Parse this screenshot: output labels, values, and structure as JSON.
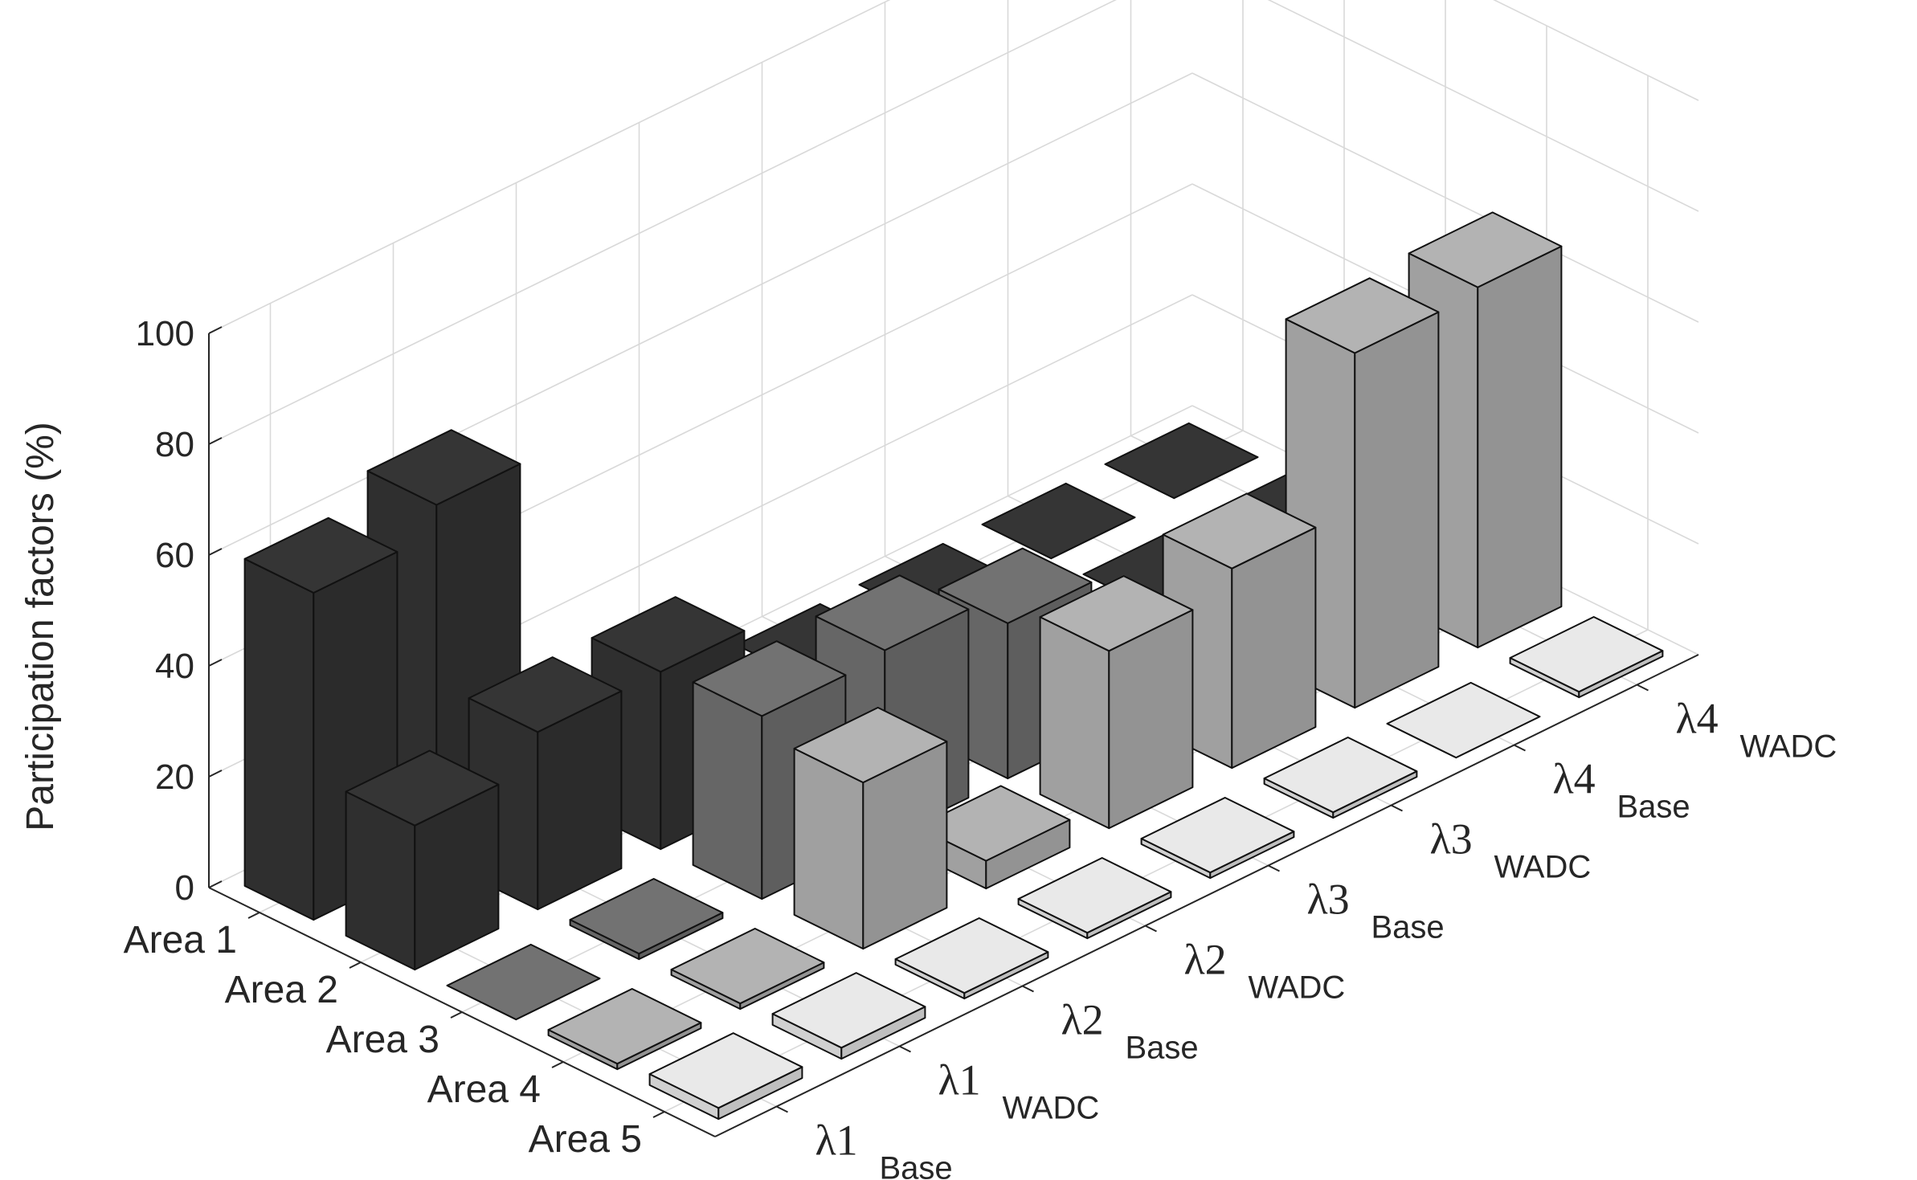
{
  "chart_data": {
    "type": "bar3d",
    "title": "",
    "zlabel": "Participation factors (%)",
    "zlim": [
      0,
      100
    ],
    "z_ticks": [
      "0",
      "20",
      "40",
      "60",
      "80",
      "100"
    ],
    "areas": [
      "Area 1",
      "Area 2",
      "Area 3",
      "Area 4",
      "Area 5"
    ],
    "modes": [
      {
        "symbol": "λ1",
        "sub": "Base"
      },
      {
        "symbol": "λ1",
        "sub": "WADC"
      },
      {
        "symbol": "λ2",
        "sub": "Base"
      },
      {
        "symbol": "λ2",
        "sub": "WADC"
      },
      {
        "symbol": "λ3",
        "sub": "Base"
      },
      {
        "symbol": "λ3",
        "sub": "WADC"
      },
      {
        "symbol": "λ4",
        "sub": "Base"
      },
      {
        "symbol": "λ4",
        "sub": "WADC"
      }
    ],
    "grid": true,
    "colors": {
      "Area 1": "#2f2f2f",
      "Area 2": "#2f2f2f",
      "Area 3": "#666666",
      "Area 4": "#a0a0a0",
      "Area 5": "#d0d0d0"
    },
    "series": [
      {
        "name": "λ1 Base",
        "values": [
          59,
          26,
          0,
          1,
          2
        ]
      },
      {
        "name": "λ1 WADC",
        "values": [
          64,
          32,
          1,
          1,
          2
        ]
      },
      {
        "name": "λ2 Base",
        "values": [
          1,
          32,
          33,
          30,
          1
        ]
      },
      {
        "name": "λ2 WADC",
        "values": [
          1,
          3,
          34,
          5,
          1
        ]
      },
      {
        "name": "λ3 Base",
        "values": [
          0,
          2,
          28,
          32,
          1
        ]
      },
      {
        "name": "λ3 WADC",
        "values": [
          0,
          2,
          3,
          36,
          1
        ]
      },
      {
        "name": "λ4 Base",
        "values": [
          0,
          0,
          1,
          64,
          0
        ]
      },
      {
        "name": "λ4 WADC",
        "values": [
          0,
          0,
          1,
          65,
          1
        ]
      }
    ]
  }
}
